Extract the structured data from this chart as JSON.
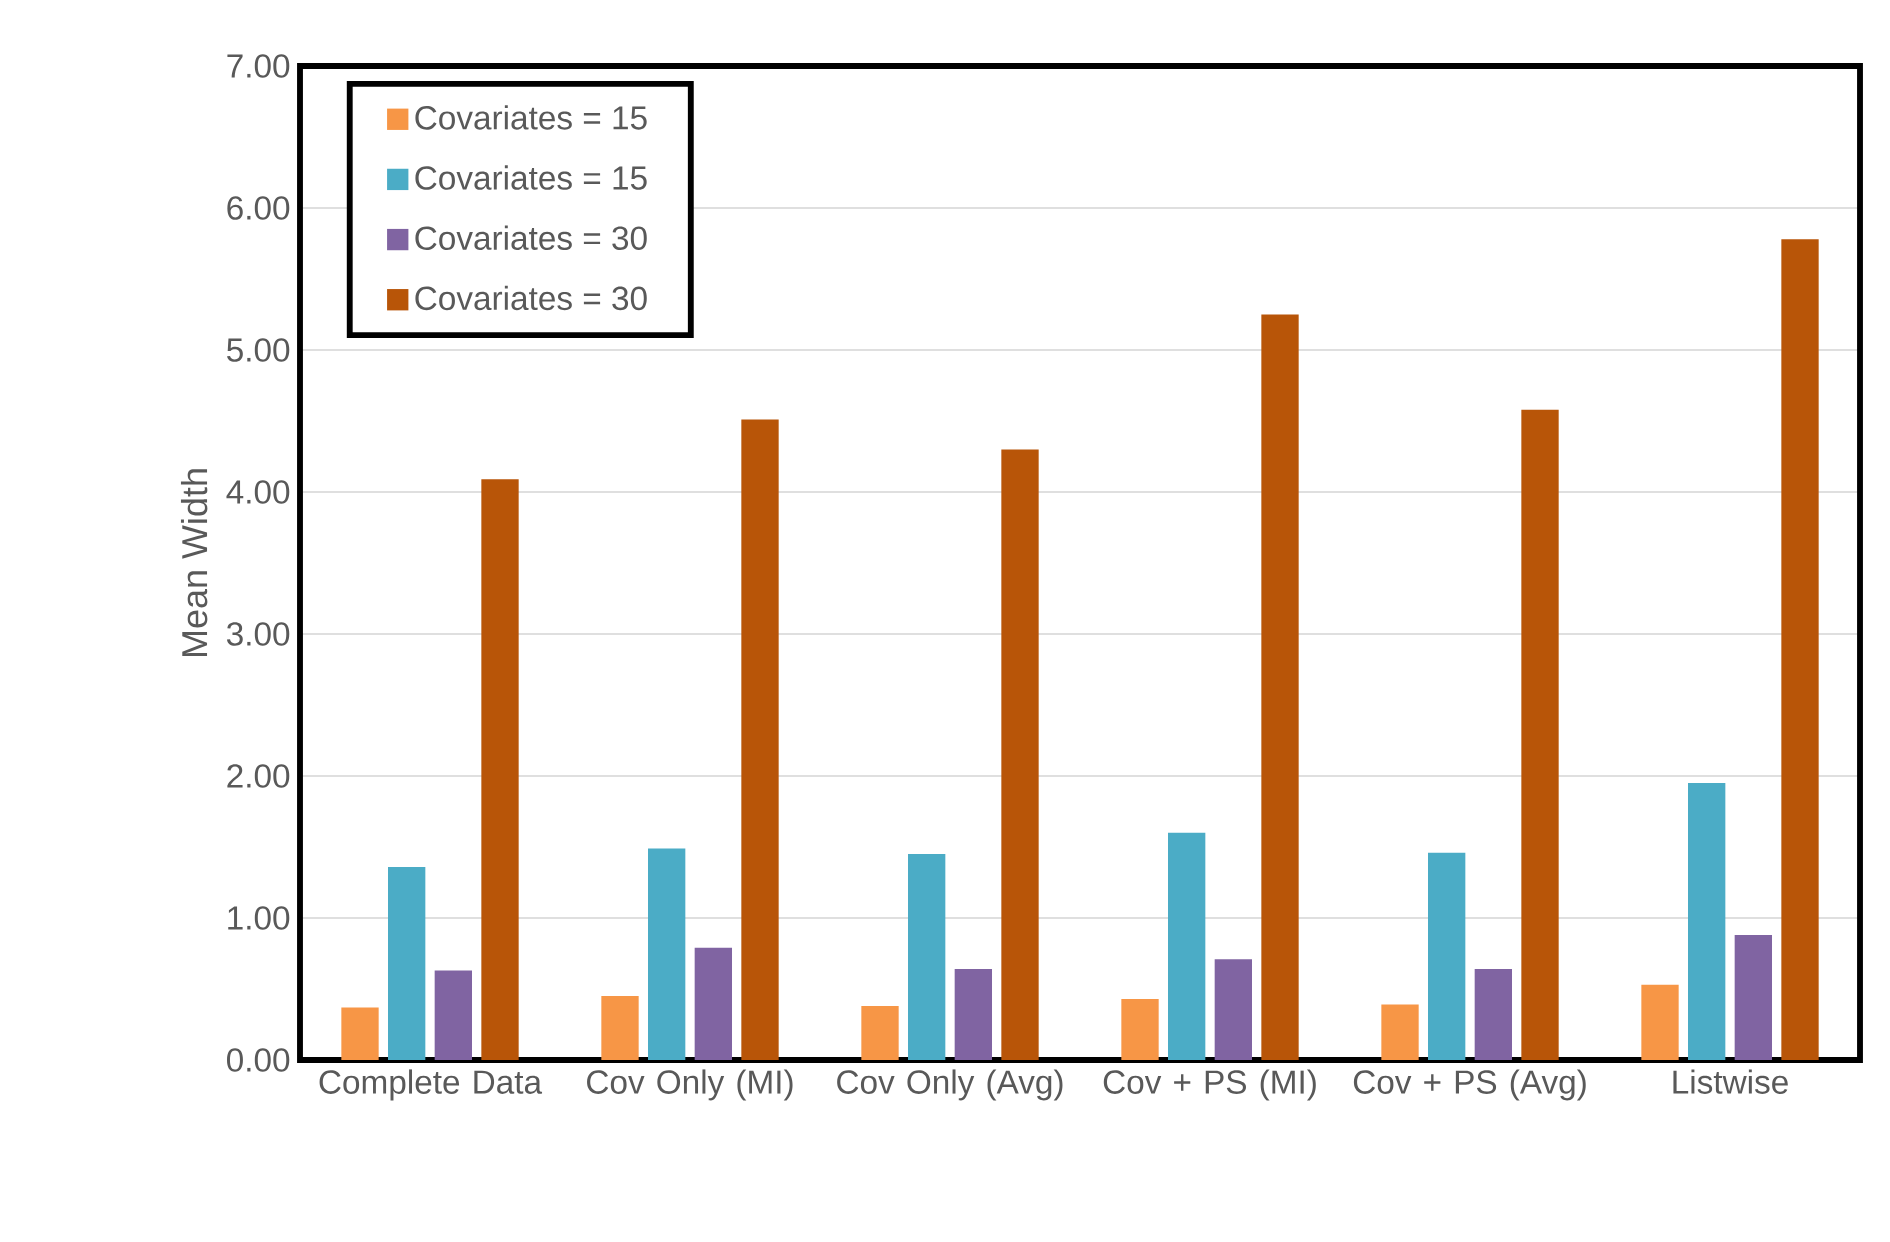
{
  "chart_data": {
    "type": "bar",
    "ylabel": "Mean Width",
    "categories": [
      "Complete Data",
      "Cov Only (MI)",
      "Cov Only (Avg)",
      "Cov + PS (MI)",
      "Cov + PS (Avg)",
      "Listwise"
    ],
    "series": [
      {
        "name": "Covariates = 15",
        "color": "#f79646",
        "values": [
          0.37,
          0.45,
          0.38,
          0.43,
          0.39,
          0.53
        ]
      },
      {
        "name": "Covariates = 15",
        "color": "#4bacc6",
        "values": [
          1.36,
          1.49,
          1.45,
          1.6,
          1.46,
          1.95
        ]
      },
      {
        "name": "Covariates = 30",
        "color": "#8064a2",
        "values": [
          0.63,
          0.79,
          0.64,
          0.71,
          0.64,
          0.88
        ]
      },
      {
        "name": "Covariates = 30",
        "color": "#b85508",
        "values": [
          4.09,
          4.51,
          4.3,
          5.25,
          4.58,
          5.78
        ]
      }
    ],
    "ylim": [
      0,
      7
    ],
    "yticks": [
      {
        "value": 0,
        "label": "0.00"
      },
      {
        "value": 1,
        "label": "1.00"
      },
      {
        "value": 2,
        "label": "2.00"
      },
      {
        "value": 3,
        "label": "3.00"
      },
      {
        "value": 4,
        "label": "4.00"
      },
      {
        "value": 5,
        "label": "5.00"
      },
      {
        "value": 6,
        "label": "6.00"
      },
      {
        "value": 7,
        "label": "7.00"
      }
    ],
    "grid": "y",
    "legend": "top left"
  }
}
